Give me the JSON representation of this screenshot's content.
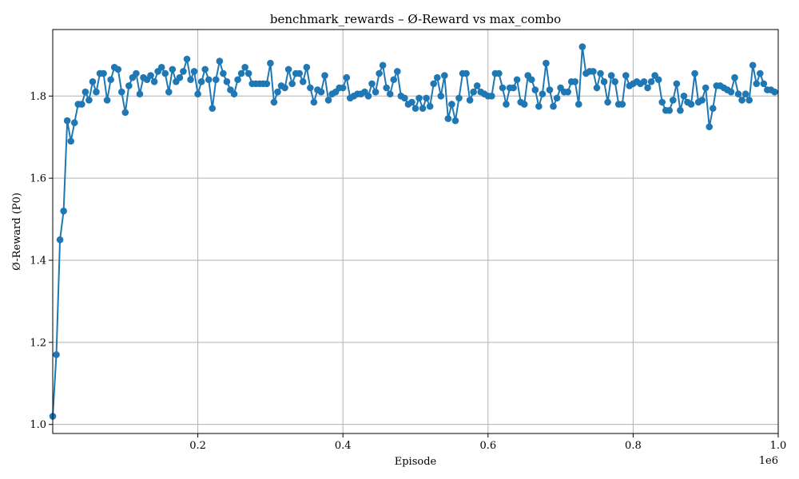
{
  "chart_data": {
    "type": "line",
    "title": "benchmark_rewards – Ø-Reward vs max_combo",
    "xlabel": "Episode",
    "ylabel": "Ø-Reward (P0)",
    "x_offset_label": "1e6",
    "xlim": [
      0,
      1000000
    ],
    "ylim": [
      0.978,
      1.962
    ],
    "x_ticks": [
      0.2,
      0.4,
      0.6,
      0.8,
      1.0
    ],
    "x_tick_labels": [
      "0.2",
      "0.4",
      "0.6",
      "0.8",
      "1.0"
    ],
    "y_ticks": [
      1.0,
      1.2,
      1.4,
      1.6,
      1.8
    ],
    "y_tick_labels": [
      "1.0",
      "1.2",
      "1.4",
      "1.6",
      "1.8"
    ],
    "grid": true,
    "color": "#1f77b4",
    "marker": "circle",
    "x_start": 0,
    "x_step": 5000,
    "values": [
      1.02,
      1.17,
      1.45,
      1.52,
      1.74,
      1.69,
      1.735,
      1.78,
      1.78,
      1.81,
      1.79,
      1.835,
      1.81,
      1.855,
      1.855,
      1.79,
      1.84,
      1.87,
      1.865,
      1.81,
      1.76,
      1.825,
      1.845,
      1.855,
      1.805,
      1.845,
      1.84,
      1.85,
      1.835,
      1.86,
      1.87,
      1.855,
      1.81,
      1.865,
      1.835,
      1.845,
      1.86,
      1.89,
      1.84,
      1.86,
      1.805,
      1.835,
      1.865,
      1.84,
      1.77,
      1.84,
      1.885,
      1.855,
      1.835,
      1.815,
      1.805,
      1.84,
      1.855,
      1.87,
      1.855,
      1.83,
      1.83,
      1.83,
      1.83,
      1.83,
      1.88,
      1.785,
      1.81,
      1.825,
      1.82,
      1.865,
      1.83,
      1.855,
      1.855,
      1.835,
      1.87,
      1.82,
      1.785,
      1.815,
      1.81,
      1.85,
      1.79,
      1.805,
      1.81,
      1.82,
      1.82,
      1.845,
      1.795,
      1.8,
      1.805,
      1.805,
      1.81,
      1.8,
      1.83,
      1.81,
      1.855,
      1.875,
      1.82,
      1.805,
      1.84,
      1.86,
      1.8,
      1.795,
      1.78,
      1.785,
      1.77,
      1.795,
      1.77,
      1.795,
      1.775,
      1.83,
      1.845,
      1.8,
      1.85,
      1.745,
      1.78,
      1.74,
      1.795,
      1.855,
      1.855,
      1.79,
      1.81,
      1.825,
      1.81,
      1.805,
      1.8,
      1.8,
      1.855,
      1.855,
      1.82,
      1.78,
      1.82,
      1.82,
      1.84,
      1.785,
      1.78,
      1.85,
      1.84,
      1.815,
      1.775,
      1.805,
      1.88,
      1.815,
      1.775,
      1.795,
      1.82,
      1.81,
      1.81,
      1.835,
      1.835,
      1.78,
      1.92,
      1.855,
      1.86,
      1.86,
      1.82,
      1.855,
      1.835,
      1.785,
      1.85,
      1.835,
      1.78,
      1.78,
      1.85,
      1.825,
      1.83,
      1.835,
      1.83,
      1.835,
      1.82,
      1.835,
      1.85,
      1.84,
      1.785,
      1.765,
      1.765,
      1.79,
      1.83,
      1.765,
      1.8,
      1.785,
      1.78,
      1.855,
      1.785,
      1.79,
      1.82,
      1.725,
      1.77,
      1.825,
      1.825,
      1.82,
      1.815,
      1.81,
      1.845,
      1.805,
      1.79,
      1.805,
      1.79,
      1.875,
      1.83,
      1.855,
      1.83,
      1.815,
      1.815,
      1.81
    ]
  }
}
